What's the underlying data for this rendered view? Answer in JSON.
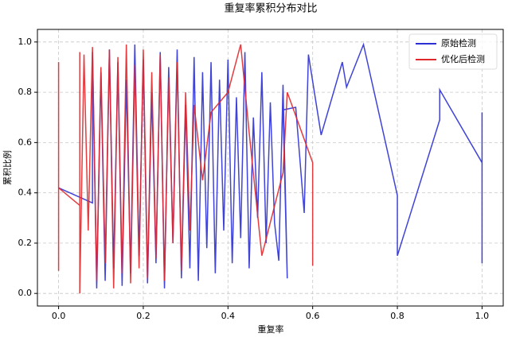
{
  "chart_data": {
    "type": "line",
    "title": "重复率累积分布对比",
    "x_label": "重复率",
    "y_label": "累积比例",
    "xlim": [
      -0.05,
      1.05
    ],
    "ylim": [
      -0.05,
      1.05
    ],
    "xticks": [
      {
        "value": 0,
        "label": "0.0"
      },
      0.2,
      0.4,
      0.6,
      0.8,
      {
        "value": 1,
        "label": "1.0"
      }
    ],
    "yticks": [
      {
        "value": 0,
        "label": "0.0"
      },
      0.2,
      0.4,
      0.6,
      0.8,
      {
        "value": 1,
        "label": "1.0"
      }
    ],
    "grid": true,
    "legend": "upper right",
    "series": [
      {
        "name": "原始检测",
        "color": "#2b2fd4",
        "x": [
          0.0,
          0.08,
          0.08,
          0.09,
          0.1,
          0.11,
          0.12,
          0.13,
          0.14,
          0.15,
          0.16,
          0.17,
          0.18,
          0.19,
          0.2,
          0.21,
          0.22,
          0.23,
          0.24,
          0.25,
          0.26,
          0.27,
          0.28,
          0.29,
          0.3,
          0.31,
          0.32,
          0.33,
          0.34,
          0.35,
          0.36,
          0.37,
          0.38,
          0.39,
          0.4,
          0.41,
          0.42,
          0.43,
          0.44,
          0.45,
          0.46,
          0.47,
          0.48,
          0.49,
          0.5,
          0.51,
          0.52,
          0.53,
          0.54,
          0.53,
          0.56,
          0.58,
          0.59,
          0.62,
          0.67,
          0.68,
          0.72,
          0.8,
          0.8,
          0.9,
          0.9,
          1.0,
          1.0,
          1.0
        ],
        "values": [
          0.42,
          0.36,
          0.96,
          0.02,
          0.88,
          0.05,
          0.97,
          0.1,
          0.92,
          0.03,
          0.85,
          0.08,
          0.99,
          0.15,
          0.93,
          0.04,
          0.8,
          0.12,
          0.96,
          0.02,
          0.9,
          0.2,
          0.97,
          0.06,
          0.75,
          0.1,
          0.94,
          0.05,
          0.88,
          0.18,
          0.92,
          0.08,
          0.85,
          0.25,
          0.93,
          0.12,
          0.78,
          0.22,
          0.96,
          0.1,
          0.7,
          0.3,
          0.88,
          0.2,
          0.76,
          0.28,
          0.13,
          0.83,
          0.06,
          0.73,
          0.74,
          0.32,
          0.95,
          0.63,
          0.92,
          0.82,
          0.99,
          0.39,
          0.15,
          0.69,
          0.81,
          0.52,
          0.72,
          0.12
        ]
      },
      {
        "name": "优化后检测",
        "color": "#e0282b",
        "x": [
          0.0,
          0.0,
          0.0,
          0.05,
          0.05,
          0.05,
          0.06,
          0.07,
          0.08,
          0.09,
          0.1,
          0.11,
          0.12,
          0.13,
          0.14,
          0.15,
          0.16,
          0.17,
          0.18,
          0.19,
          0.2,
          0.21,
          0.22,
          0.23,
          0.24,
          0.25,
          0.26,
          0.27,
          0.28,
          0.29,
          0.3,
          0.31,
          0.32,
          0.33,
          0.34,
          0.36,
          0.4,
          0.43,
          0.45,
          0.48,
          0.53,
          0.54,
          0.6,
          0.6
        ],
        "values": [
          0.09,
          0.92,
          0.42,
          0.35,
          0.96,
          0.0,
          0.95,
          0.25,
          0.98,
          0.05,
          0.9,
          0.12,
          0.97,
          0.02,
          0.94,
          0.08,
          0.99,
          0.04,
          0.91,
          0.1,
          0.97,
          0.06,
          0.88,
          0.14,
          0.95,
          0.05,
          0.86,
          0.2,
          0.92,
          0.09,
          0.8,
          0.25,
          0.75,
          0.6,
          0.45,
          0.72,
          0.8,
          0.99,
          0.64,
          0.15,
          0.48,
          0.8,
          0.52,
          0.11
        ]
      }
    ]
  }
}
